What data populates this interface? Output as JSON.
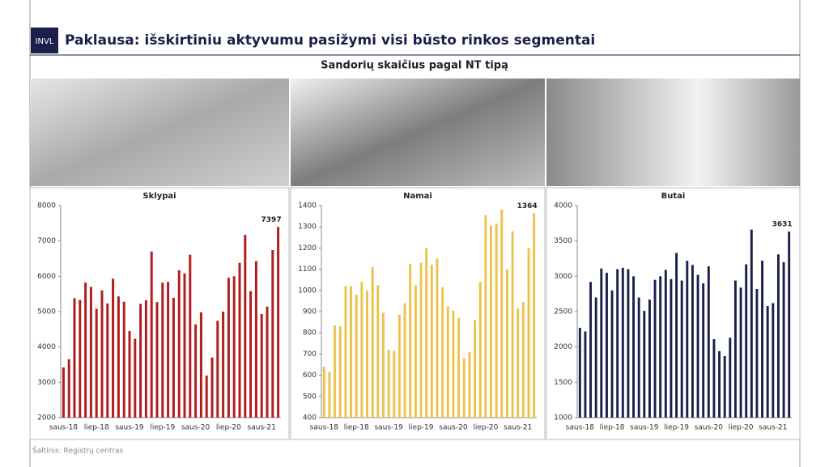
{
  "logo": "INVL",
  "title": "Paklausa: išskirtiniu aktyvumu pasižymi visi būsto rinkos segmentai",
  "subtitle": "Sandorių skaičius pagal NT tipą",
  "source": "Šaltinis: Registrų centras",
  "chart_data": [
    {
      "type": "bar",
      "title": "Sklypai",
      "color": "#b01e1e",
      "categories": [
        "saus-18",
        null,
        null,
        null,
        null,
        null,
        "liep-18",
        null,
        null,
        null,
        null,
        null,
        "saus-19",
        null,
        null,
        null,
        null,
        null,
        "liep-19",
        null,
        null,
        null,
        null,
        null,
        "saus-20",
        null,
        null,
        null,
        null,
        null,
        "liep-20",
        null,
        null,
        null,
        null,
        null,
        "saus-21",
        null,
        null,
        null
      ],
      "values": [
        3420,
        3650,
        5380,
        5330,
        5820,
        5700,
        5080,
        5600,
        5230,
        5930,
        5430,
        5280,
        4450,
        4230,
        5220,
        5320,
        6700,
        5270,
        5820,
        5840,
        5390,
        6170,
        6080,
        6610,
        4640,
        4980,
        3190,
        3700,
        4740,
        5000,
        5960,
        6000,
        6380,
        7170,
        5580,
        6430,
        4930,
        5140,
        6740,
        7397
      ],
      "ylim": [
        2000,
        8000
      ],
      "yticks": [
        2000,
        3000,
        4000,
        5000,
        6000,
        7000,
        8000
      ]
    },
    {
      "type": "bar",
      "title": "Namai",
      "color": "#ebc34a",
      "categories": [
        "saus-18",
        null,
        null,
        null,
        null,
        null,
        "liep-18",
        null,
        null,
        null,
        null,
        null,
        "saus-19",
        null,
        null,
        null,
        null,
        null,
        "liep-19",
        null,
        null,
        null,
        null,
        null,
        "saus-20",
        null,
        null,
        null,
        null,
        null,
        "liep-20",
        null,
        null,
        null,
        null,
        null,
        "saus-21",
        null,
        null,
        null
      ],
      "values": [
        640,
        615,
        835,
        830,
        1020,
        1020,
        980,
        1040,
        1000,
        1110,
        1025,
        895,
        720,
        715,
        885,
        940,
        1125,
        1025,
        1130,
        1200,
        1120,
        1150,
        1015,
        925,
        905,
        870,
        680,
        710,
        860,
        1040,
        1355,
        1305,
        1315,
        1380,
        1100,
        1280,
        915,
        945,
        1200,
        1364
      ],
      "ylim": [
        400,
        1400
      ],
      "yticks": [
        400,
        500,
        600,
        700,
        800,
        900,
        1000,
        1100,
        1200,
        1300,
        1400
      ]
    },
    {
      "type": "bar",
      "title": "Butai",
      "color": "#1b1f4b",
      "categories": [
        "saus-18",
        null,
        null,
        null,
        null,
        null,
        "liep-18",
        null,
        null,
        null,
        null,
        null,
        "saus-19",
        null,
        null,
        null,
        null,
        null,
        "liep-19",
        null,
        null,
        null,
        null,
        null,
        "saus-20",
        null,
        null,
        null,
        null,
        null,
        "liep-20",
        null,
        null,
        null,
        null,
        null,
        "saus-21",
        null,
        null,
        null
      ],
      "values": [
        2270,
        2220,
        2920,
        2700,
        3110,
        3050,
        2800,
        3100,
        3120,
        3100,
        3000,
        2700,
        2510,
        2670,
        2950,
        3000,
        3090,
        2960,
        3330,
        2940,
        3220,
        3160,
        3020,
        2900,
        3140,
        2110,
        1940,
        1870,
        2130,
        2940,
        2840,
        3170,
        3660,
        2820,
        3220,
        2580,
        2620,
        3310,
        3200,
        3631
      ],
      "ylim": [
        1000,
        4000
      ],
      "yticks": [
        1000,
        1500,
        2000,
        2500,
        3000,
        3500,
        4000
      ]
    }
  ]
}
